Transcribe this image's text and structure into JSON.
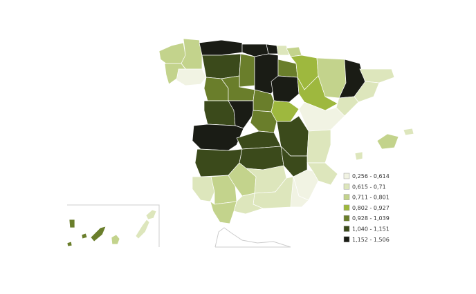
{
  "legend": {
    "items": [
      {
        "label": "0,256 - 0,614",
        "color": "#f1f3e3"
      },
      {
        "label": "0,615 - 0,71",
        "color": "#dde6bc"
      },
      {
        "label": "0,711 - 0,801",
        "color": "#c3d38c"
      },
      {
        "label": "0,802 - 0,927",
        "color": "#9eb83e"
      },
      {
        "label": "0,928 - 1,039",
        "color": "#6a7e2b"
      },
      {
        "label": "1,040 - 1,151",
        "color": "#3b4a1b"
      },
      {
        "label": "1,152 - 1,506",
        "color": "#1a1c15"
      }
    ]
  }
}
